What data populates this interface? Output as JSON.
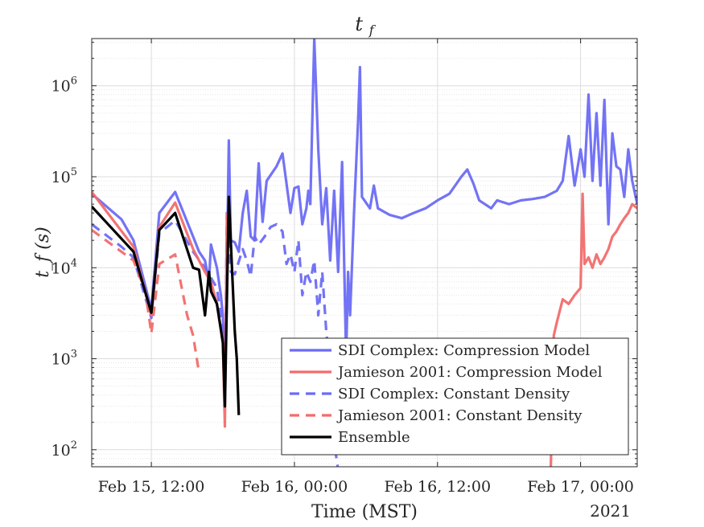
{
  "chart_data": {
    "type": "line",
    "title": "t_f",
    "xlabel": "Time (MST)",
    "ylabel": "t_f (s)",
    "x_year_label": "2021",
    "yscale": "log",
    "ylim": [
      65,
      3300000
    ],
    "xlim": [
      "2021-02-15T07:00",
      "2021-02-17T04:45"
    ],
    "grid": "major and minor",
    "legend_position": "bottom-right",
    "x_ticks": [
      {
        "t": "2021-02-15T12:00",
        "label": "Feb 15, 12:00"
      },
      {
        "t": "2021-02-16T00:00",
        "label": "Feb 16, 00:00"
      },
      {
        "t": "2021-02-16T12:00",
        "label": "Feb 16, 12:00"
      },
      {
        "t": "2021-02-17T00:00",
        "label": "Feb 17, 00:00"
      }
    ],
    "y_ticks": [
      {
        "v": 100,
        "base": "10",
        "exp": "2"
      },
      {
        "v": 1000,
        "base": "10",
        "exp": "3"
      },
      {
        "v": 10000,
        "base": "10",
        "exp": "4"
      },
      {
        "v": 100000,
        "base": "10",
        "exp": "5"
      },
      {
        "v": 1000000,
        "base": "10",
        "exp": "6"
      }
    ],
    "series": [
      {
        "name": "SDI Complex: Compression Model",
        "color": "#6b6bf5",
        "dash": false,
        "points": [
          [
            "2021-02-15T07:00",
            65000
          ],
          [
            "2021-02-15T09:30",
            34000
          ],
          [
            "2021-02-15T10:30",
            20000
          ],
          [
            "2021-02-15T12:00",
            3500
          ],
          [
            "2021-02-15T12:40",
            40000
          ],
          [
            "2021-02-15T14:00",
            68000
          ],
          [
            "2021-02-15T15:30",
            22000
          ],
          [
            "2021-02-15T16:00",
            15000
          ],
          [
            "2021-02-15T16:30",
            12000
          ],
          [
            "2021-02-15T16:50",
            7000
          ],
          [
            "2021-02-15T17:00",
            18000
          ],
          [
            "2021-02-15T17:30",
            10000
          ],
          [
            "2021-02-15T17:50",
            5000
          ],
          [
            "2021-02-15T18:00",
            3000
          ],
          [
            "2021-02-15T18:10",
            500
          ],
          [
            "2021-02-15T18:20",
            10000
          ],
          [
            "2021-02-15T18:30",
            250000
          ],
          [
            "2021-02-15T18:40",
            20000
          ],
          [
            "2021-02-15T19:00",
            19000
          ],
          [
            "2021-02-15T19:20",
            15000
          ],
          [
            "2021-02-15T19:40",
            40000
          ],
          [
            "2021-02-15T20:00",
            70000
          ],
          [
            "2021-02-15T20:20",
            22000
          ],
          [
            "2021-02-15T20:40",
            20000
          ],
          [
            "2021-02-15T21:00",
            140000
          ],
          [
            "2021-02-15T21:20",
            32000
          ],
          [
            "2021-02-15T21:40",
            90000
          ],
          [
            "2021-02-15T22:30",
            130000
          ],
          [
            "2021-02-15T23:00",
            180000
          ],
          [
            "2021-02-15T23:40",
            40000
          ],
          [
            "2021-02-16T00:00",
            75000
          ],
          [
            "2021-02-16T00:20",
            78000
          ],
          [
            "2021-02-16T00:40",
            30000
          ],
          [
            "2021-02-16T01:00",
            45000
          ],
          [
            "2021-02-16T01:10",
            70000
          ],
          [
            "2021-02-16T01:20",
            50000
          ],
          [
            "2021-02-16T01:40",
            3300000
          ],
          [
            "2021-02-16T02:00",
            200000
          ],
          [
            "2021-02-16T02:20",
            30000
          ],
          [
            "2021-02-16T02:40",
            75000
          ],
          [
            "2021-02-16T03:00",
            12000
          ],
          [
            "2021-02-16T03:20",
            70000
          ],
          [
            "2021-02-16T03:40",
            9000
          ],
          [
            "2021-02-16T04:00",
            145000
          ],
          [
            "2021-02-16T04:20",
            1000
          ],
          [
            "2021-02-16T04:30",
            9000
          ],
          [
            "2021-02-16T04:40",
            3000
          ],
          [
            "2021-02-16T05:00",
            40000
          ],
          [
            "2021-02-16T05:20",
            400000
          ],
          [
            "2021-02-16T05:30",
            1600000
          ],
          [
            "2021-02-16T05:40",
            60000
          ],
          [
            "2021-02-16T06:20",
            45000
          ],
          [
            "2021-02-16T06:40",
            80000
          ],
          [
            "2021-02-16T07:00",
            45000
          ],
          [
            "2021-02-16T08:00",
            38000
          ],
          [
            "2021-02-16T09:00",
            35000
          ],
          [
            "2021-02-16T10:00",
            40000
          ],
          [
            "2021-02-16T11:00",
            45000
          ],
          [
            "2021-02-16T12:00",
            55000
          ],
          [
            "2021-02-16T13:00",
            65000
          ],
          [
            "2021-02-16T14:00",
            100000
          ],
          [
            "2021-02-16T14:30",
            120000
          ],
          [
            "2021-02-16T15:00",
            85000
          ],
          [
            "2021-02-16T15:30",
            55000
          ],
          [
            "2021-02-16T16:30",
            45000
          ],
          [
            "2021-02-16T17:00",
            55000
          ],
          [
            "2021-02-16T18:00",
            50000
          ],
          [
            "2021-02-16T19:00",
            55000
          ],
          [
            "2021-02-16T20:00",
            57000
          ],
          [
            "2021-02-16T21:00",
            60000
          ],
          [
            "2021-02-16T22:00",
            70000
          ],
          [
            "2021-02-16T22:30",
            90000
          ],
          [
            "2021-02-16T23:00",
            280000
          ],
          [
            "2021-02-16T23:30",
            80000
          ],
          [
            "2021-02-17T00:00",
            200000
          ],
          [
            "2021-02-17T00:20",
            100000
          ],
          [
            "2021-02-17T00:40",
            800000
          ],
          [
            "2021-02-17T01:00",
            90000
          ],
          [
            "2021-02-17T01:20",
            500000
          ],
          [
            "2021-02-17T01:40",
            80000
          ],
          [
            "2021-02-17T02:00",
            700000
          ],
          [
            "2021-02-17T02:20",
            30000
          ],
          [
            "2021-02-17T02:40",
            300000
          ],
          [
            "2021-02-17T03:00",
            130000
          ],
          [
            "2021-02-17T03:20",
            120000
          ],
          [
            "2021-02-17T03:40",
            60000
          ],
          [
            "2021-02-17T04:00",
            200000
          ],
          [
            "2021-02-17T04:20",
            90000
          ],
          [
            "2021-02-17T04:45",
            50000
          ]
        ]
      },
      {
        "name": "Jamieson 2001: Compression Model",
        "color": "#f26b6b",
        "dash": false,
        "points": [
          [
            "2021-02-15T07:00",
            68000
          ],
          [
            "2021-02-15T10:30",
            17000
          ],
          [
            "2021-02-15T12:00",
            3000
          ],
          [
            "2021-02-15T12:40",
            28000
          ],
          [
            "2021-02-15T14:00",
            52000
          ],
          [
            "2021-02-15T15:30",
            16000
          ],
          [
            "2021-02-15T16:30",
            9000
          ],
          [
            "2021-02-15T17:00",
            7000
          ],
          [
            "2021-02-15T17:30",
            4000
          ],
          [
            "2021-02-15T18:00",
            1500
          ],
          [
            "2021-02-15T18:10",
            180
          ],
          [
            "2021-02-15T18:20",
            40000
          ]
        ]
      },
      {
        "name": "SDI Complex: Constant Density",
        "color": "#6b6bf5",
        "dash": true,
        "points": [
          [
            "2021-02-15T07:00",
            30000
          ],
          [
            "2021-02-15T09:30",
            17000
          ],
          [
            "2021-02-15T10:30",
            13000
          ],
          [
            "2021-02-15T12:00",
            2800
          ],
          [
            "2021-02-15T12:40",
            24000
          ],
          [
            "2021-02-15T14:00",
            33000
          ],
          [
            "2021-02-15T15:30",
            15000
          ],
          [
            "2021-02-15T16:30",
            10000
          ],
          [
            "2021-02-15T17:30",
            6000
          ],
          [
            "2021-02-15T18:00",
            2000
          ],
          [
            "2021-02-15T18:10",
            350
          ],
          [
            "2021-02-15T18:20",
            40000
          ],
          [
            "2021-02-15T18:40",
            9000
          ],
          [
            "2021-02-15T19:00",
            8500
          ],
          [
            "2021-02-15T19:40",
            16000
          ],
          [
            "2021-02-15T20:00",
            12000
          ],
          [
            "2021-02-15T20:20",
            8000
          ],
          [
            "2021-02-15T20:40",
            22000
          ],
          [
            "2021-02-15T21:00",
            18000
          ],
          [
            "2021-02-15T21:30",
            22000
          ],
          [
            "2021-02-15T22:00",
            28000
          ],
          [
            "2021-02-15T22:30",
            30000
          ],
          [
            "2021-02-15T23:00",
            25000
          ],
          [
            "2021-02-15T23:20",
            11000
          ],
          [
            "2021-02-15T23:40",
            14000
          ],
          [
            "2021-02-16T00:00",
            9000
          ],
          [
            "2021-02-16T00:20",
            20000
          ],
          [
            "2021-02-16T00:40",
            5000
          ],
          [
            "2021-02-16T01:00",
            9000
          ],
          [
            "2021-02-16T01:20",
            7000
          ],
          [
            "2021-02-16T01:40",
            12000
          ],
          [
            "2021-02-16T02:00",
            3000
          ],
          [
            "2021-02-16T02:20",
            9000
          ],
          [
            "2021-02-16T02:40",
            2000
          ],
          [
            "2021-02-16T03:00",
            800
          ],
          [
            "2021-02-16T03:20",
            120
          ],
          [
            "2021-02-16T03:40",
            60
          ]
        ]
      },
      {
        "name": "Jamieson 2001: Constant Density",
        "color": "#f26b6b",
        "dash": true,
        "points": [
          [
            "2021-02-15T07:00",
            26000
          ],
          [
            "2021-02-15T10:30",
            12000
          ],
          [
            "2021-02-15T11:30",
            5500
          ],
          [
            "2021-02-15T12:00",
            1900
          ],
          [
            "2021-02-15T12:40",
            11000
          ],
          [
            "2021-02-15T14:00",
            14000
          ],
          [
            "2021-02-15T15:00",
            3000
          ],
          [
            "2021-02-15T15:30",
            1800
          ],
          [
            "2021-02-15T16:00",
            700
          ]
        ]
      },
      {
        "name": "Ensemble",
        "color": "#000000",
        "dash": false,
        "points": [
          [
            "2021-02-15T07:00",
            47000
          ],
          [
            "2021-02-15T10:30",
            15000
          ],
          [
            "2021-02-15T12:00",
            3200
          ],
          [
            "2021-02-15T12:40",
            26000
          ],
          [
            "2021-02-15T14:00",
            40000
          ],
          [
            "2021-02-15T15:30",
            10000
          ],
          [
            "2021-02-15T16:00",
            9500
          ],
          [
            "2021-02-15T16:30",
            3000
          ],
          [
            "2021-02-15T16:50",
            9000
          ],
          [
            "2021-02-15T17:00",
            5500
          ],
          [
            "2021-02-15T17:30",
            4000
          ],
          [
            "2021-02-15T18:00",
            1500
          ],
          [
            "2021-02-15T18:10",
            300
          ],
          [
            "2021-02-15T18:30",
            60000
          ],
          [
            "2021-02-15T19:00",
            2000
          ],
          [
            "2021-02-15T19:10",
            1000
          ],
          [
            "2021-02-15T19:20",
            240
          ]
        ]
      },
      {
        "name": "Jamieson 2001: Compression Model (late)",
        "legend": false,
        "color": "#f26b6b",
        "dash": false,
        "points": [
          [
            "2021-02-16T21:30",
            65
          ],
          [
            "2021-02-16T21:45",
            1800
          ],
          [
            "2021-02-16T22:00",
            2500
          ],
          [
            "2021-02-16T22:30",
            4500
          ],
          [
            "2021-02-16T23:00",
            4000
          ],
          [
            "2021-02-16T23:30",
            5000
          ],
          [
            "2021-02-17T00:00",
            6000
          ],
          [
            "2021-02-17T00:10",
            65000
          ],
          [
            "2021-02-17T00:20",
            11000
          ],
          [
            "2021-02-17T00:40",
            13000
          ],
          [
            "2021-02-17T01:00",
            10000
          ],
          [
            "2021-02-17T01:20",
            14000
          ],
          [
            "2021-02-17T01:40",
            11000
          ],
          [
            "2021-02-17T02:00",
            13000
          ],
          [
            "2021-02-17T02:20",
            16000
          ],
          [
            "2021-02-17T02:40",
            22000
          ],
          [
            "2021-02-17T03:00",
            25000
          ],
          [
            "2021-02-17T03:20",
            30000
          ],
          [
            "2021-02-17T03:40",
            35000
          ],
          [
            "2021-02-17T04:00",
            40000
          ],
          [
            "2021-02-17T04:20",
            50000
          ],
          [
            "2021-02-17T04:45",
            45000
          ]
        ]
      }
    ]
  }
}
